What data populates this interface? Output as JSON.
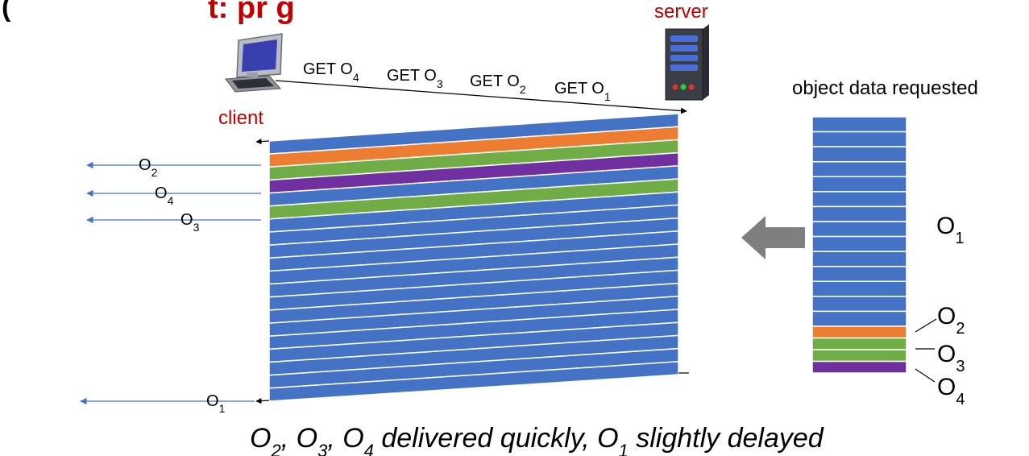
{
  "header_fragment": "(… it: pr… g)",
  "labels": {
    "server": "server",
    "client": "client",
    "object_data_requested": "object data requested",
    "caption_parts": [
      {
        "base": "O",
        "sub": "2",
        "tail": ", "
      },
      {
        "base": "O",
        "sub": "3",
        "tail": ", "
      },
      {
        "base": "O",
        "sub": "4",
        "tail": " delivered quickly, "
      },
      {
        "base": "O",
        "sub": "1",
        "tail": " slightly delayed"
      }
    ]
  },
  "requests": [
    {
      "text": "GET O",
      "sub": "4"
    },
    {
      "text": "GET O",
      "sub": "3"
    },
    {
      "text": "GET O",
      "sub": "2"
    },
    {
      "text": "GET O",
      "sub": "1"
    }
  ],
  "responses": [
    {
      "base": "O",
      "sub": "2"
    },
    {
      "base": "O",
      "sub": "4"
    },
    {
      "base": "O",
      "sub": "3"
    },
    {
      "base": "O",
      "sub": "1"
    }
  ],
  "stack_labels": [
    {
      "base": "O",
      "sub": "1"
    },
    {
      "base": "O",
      "sub": "2"
    },
    {
      "base": "O",
      "sub": "3"
    },
    {
      "base": "O",
      "sub": "4"
    }
  ],
  "colors": {
    "blue": "#4472c4",
    "orange": "#ed7d31",
    "green": "#70ad47",
    "purple": "#7030a0",
    "accent_red": "#c00000",
    "arrow_blue": "#4472c4",
    "arrow_gray": "#7f7f7f"
  },
  "frame_order": [
    "blue",
    "orange",
    "green",
    "purple",
    "blue",
    "green",
    "blue",
    "blue",
    "blue",
    "blue",
    "blue",
    "blue",
    "blue",
    "blue",
    "blue",
    "blue",
    "blue",
    "blue",
    "blue",
    "blue"
  ],
  "stack_order": [
    "blue",
    "blue",
    "blue",
    "blue",
    "blue",
    "blue",
    "blue",
    "blue",
    "blue",
    "blue",
    "blue",
    "blue",
    "blue",
    "blue",
    "orange",
    "green",
    "green",
    "purple"
  ],
  "icons": [
    "client-computer-icon",
    "server-tower-icon",
    "left-block-arrow-icon"
  ]
}
